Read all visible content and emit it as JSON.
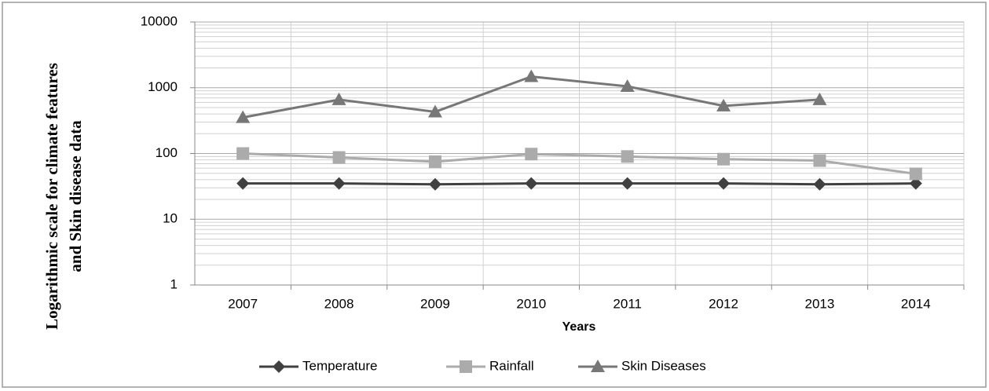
{
  "chart_data": {
    "type": "line",
    "y_label": [
      "Logarithmic scale for climate features",
      "and Skin disease data"
    ],
    "x_label": "Years",
    "categories": [
      "2007",
      "2008",
      "2009",
      "2010",
      "2011",
      "2012",
      "2013",
      "2014"
    ],
    "series": [
      {
        "name": "Temperature",
        "color": "#404040",
        "marker": "diamond",
        "values": [
          35,
          35,
          34,
          35,
          35,
          35,
          34,
          35
        ]
      },
      {
        "name": "Rainfall",
        "color": "#ababab",
        "marker": "square",
        "values": [
          100,
          87,
          75,
          98,
          90,
          82,
          78,
          49
        ]
      },
      {
        "name": "Skin Diseases",
        "color": "#777777",
        "marker": "triangle",
        "values": [
          353,
          660,
          430,
          1480,
          1050,
          530,
          660,
          null
        ]
      }
    ],
    "ylim": [
      1,
      10000
    ],
    "yticks": [
      1,
      10,
      100,
      1000,
      10000
    ],
    "log_scale": true,
    "grid": true,
    "legend": "bottom"
  }
}
